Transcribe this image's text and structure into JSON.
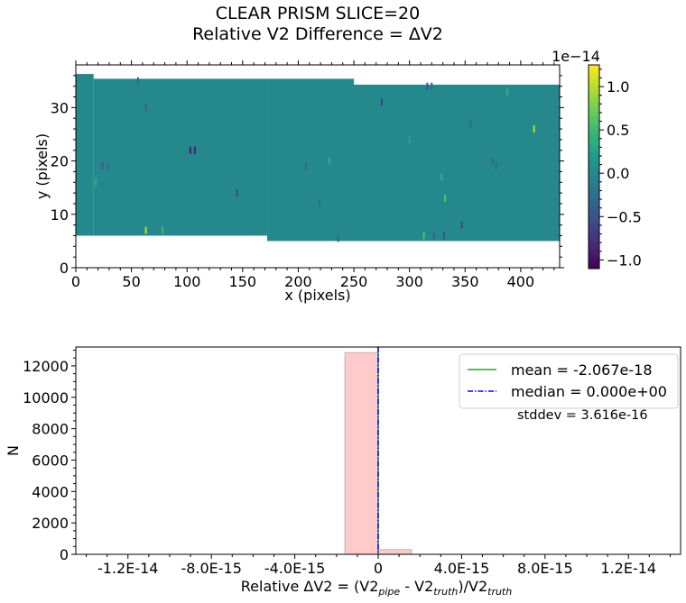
{
  "figure": {
    "title_line1": "CLEAR   PRISM   SLICE=20",
    "title_line2": "Relative V2 Difference = ΔV2"
  },
  "chart_data": [
    {
      "type": "heatmap",
      "xlabel": "x (pixels)",
      "ylabel": "y (pixels)",
      "xlim": [
        0,
        435
      ],
      "ylim": [
        0,
        38
      ],
      "xticks": [
        0,
        50,
        100,
        150,
        200,
        250,
        300,
        350,
        400
      ],
      "yticks": [
        0,
        10,
        20,
        30
      ],
      "colormap": "viridis",
      "colorbar": {
        "offset_label": "1e−14",
        "range": [
          -1.1,
          1.25
        ],
        "ticks": [
          -1.0,
          -0.5,
          0.0,
          0.5,
          1.0
        ],
        "tick_labels": [
          "−1.0",
          "−0.5",
          "0.0",
          "0.5",
          "1.0"
        ]
      },
      "background_value": 0.0,
      "background_color": "#228a8d",
      "coverage": [
        {
          "x0": 0,
          "x1": 16,
          "y0": 6,
          "y1": 36.3
        },
        {
          "x0": 16,
          "x1": 172,
          "y0": 6,
          "y1": 35.4
        },
        {
          "x0": 172,
          "x1": 250,
          "y0": 5,
          "y1": 35.4
        },
        {
          "x0": 250,
          "x1": 435,
          "y0": 5,
          "y1": 34.3
        }
      ],
      "outliers": [
        {
          "x": 103,
          "y": 22,
          "v": -0.9
        },
        {
          "x": 107,
          "y": 22,
          "v": -0.9
        },
        {
          "x": 145,
          "y": 14,
          "v": -0.6
        },
        {
          "x": 63,
          "y": 7,
          "v": 1.0
        },
        {
          "x": 78,
          "y": 7,
          "v": 0.5
        },
        {
          "x": 412,
          "y": 26,
          "v": 1.0
        },
        {
          "x": 313,
          "y": 6,
          "v": 0.6
        },
        {
          "x": 322,
          "y": 6,
          "v": -0.4
        },
        {
          "x": 331,
          "y": 6,
          "v": -0.5
        },
        {
          "x": 347,
          "y": 8,
          "v": -0.6
        },
        {
          "x": 332,
          "y": 13,
          "v": 0.6
        },
        {
          "x": 275,
          "y": 31,
          "v": -0.7
        },
        {
          "x": 316,
          "y": 34,
          "v": -0.5
        },
        {
          "x": 320,
          "y": 34,
          "v": -0.4
        },
        {
          "x": 63,
          "y": 30,
          "v": -0.4
        },
        {
          "x": 24,
          "y": 19,
          "v": -0.4
        },
        {
          "x": 29,
          "y": 19,
          "v": -0.3
        },
        {
          "x": 18,
          "y": 16,
          "v": 0.4
        },
        {
          "x": 207,
          "y": 19,
          "v": -0.3
        },
        {
          "x": 228,
          "y": 20,
          "v": 0.4
        },
        {
          "x": 375,
          "y": 20,
          "v": -0.3
        },
        {
          "x": 378,
          "y": 19,
          "v": -0.3
        },
        {
          "x": 219,
          "y": 12,
          "v": -0.3
        },
        {
          "x": 56,
          "y": 35,
          "v": -0.3
        },
        {
          "x": 388,
          "y": 33,
          "v": 0.4
        },
        {
          "x": 329,
          "y": 17,
          "v": 0.4
        },
        {
          "x": 236,
          "y": 5.5,
          "v": -0.3
        },
        {
          "x": 355,
          "y": 27,
          "v": -0.3
        },
        {
          "x": 300,
          "y": 24,
          "v": 0.3
        }
      ]
    },
    {
      "type": "bar",
      "xlabel_main": "Relative ΔV2 = (V2",
      "xlabel_sub1": "pipe",
      "xlabel_mid": " - V2",
      "xlabel_sub2": "truth",
      "xlabel_mid2": ")/V2",
      "xlabel_sub3": "truth",
      "ylabel": "N",
      "xlim": [
        -1.45e-14,
        1.45e-14
      ],
      "ylim": [
        0,
        13200
      ],
      "xticks": [
        -1.2e-14,
        -8e-15,
        -4e-15,
        0,
        4e-15,
        8e-15,
        1.2e-14
      ],
      "xtick_labels": [
        "-1.2E-14",
        "-8.0E-15",
        "-4.0E-15",
        "0",
        "4.0E-15",
        "8.0E-15",
        "1.2E-14"
      ],
      "yticks": [
        0,
        2000,
        4000,
        6000,
        8000,
        10000,
        12000
      ],
      "ytick_labels": [
        "0",
        "2000",
        "4000",
        "6000",
        "8000",
        "10000",
        "12000"
      ],
      "bins": [
        {
          "x0": -1.6e-15,
          "x1": 0,
          "count": 12850
        },
        {
          "x0": 0,
          "x1": 1.6e-15,
          "count": 300
        }
      ],
      "bar_color": "#ffcaca",
      "mean": -2.067e-18,
      "median": 0.0,
      "legend": {
        "mean_label": "mean = -2.067e-18",
        "median_label": "median = 0.000e+00",
        "mean_color": "#2ca02c",
        "median_color": "#0000ff"
      },
      "stddev_label": "stddev = 3.616e-16"
    }
  ]
}
